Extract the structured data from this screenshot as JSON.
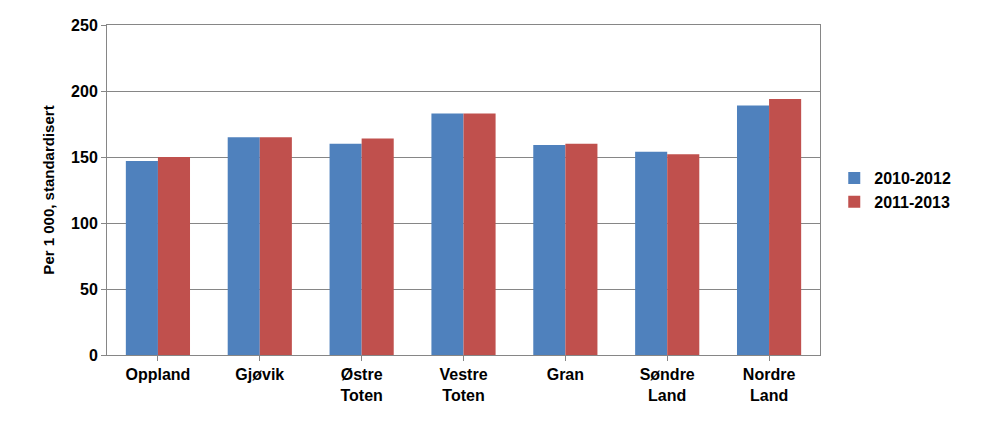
{
  "chart_data": {
    "type": "bar",
    "y_label": "Per 1 000, standardisert",
    "categories": [
      "Oppland",
      "Gjøvik",
      "Østre Toten",
      "Vestre Toten",
      "Gran",
      "Søndre Land",
      "Nordre Land"
    ],
    "series": [
      {
        "name": "2010-2012",
        "color": "#4f81bd",
        "values": [
          147,
          165,
          160,
          183,
          159,
          154,
          189
        ]
      },
      {
        "name": "2011-2013",
        "color": "#c0504d",
        "values": [
          150,
          165,
          164,
          183,
          160,
          152,
          194
        ]
      }
    ],
    "ylim": [
      0,
      250
    ],
    "yticks": [
      0,
      50,
      100,
      150,
      200,
      250
    ],
    "grid": true,
    "legend": "right"
  }
}
